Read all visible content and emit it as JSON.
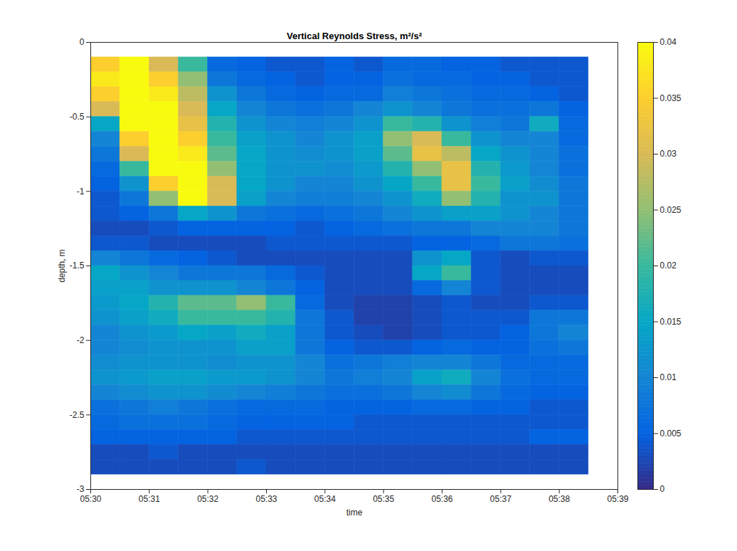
{
  "chart_data": {
    "type": "heatmap",
    "title": "Vertical Reynolds Stress, m²/s²",
    "xlabel": "time",
    "ylabel": "depth, m",
    "x": [
      30,
      30.5,
      31,
      31.5,
      32,
      32.5,
      33,
      33.5,
      34,
      34.5,
      35,
      35.5,
      36,
      36.5,
      37,
      37.5,
      38,
      38.5
    ],
    "y": [
      -0.1,
      -0.2,
      -0.3,
      -0.4,
      -0.5,
      -0.6,
      -0.7,
      -0.8,
      -0.9,
      -1.0,
      -1.1,
      -1.2,
      -1.3,
      -1.4,
      -1.5,
      -1.6,
      -1.7,
      -1.8,
      -1.9,
      -2.0,
      -2.1,
      -2.2,
      -2.3,
      -2.4,
      -2.5,
      -2.6,
      -2.7,
      -2.8,
      -2.9
    ],
    "values": [
      [
        0.035,
        0.04,
        0.03,
        0.02,
        0.006,
        0.005,
        0.004,
        0.004,
        0.005,
        0.004,
        0.006,
        0.006,
        0.005,
        0.005,
        0.004,
        0.004,
        0.004
      ],
      [
        0.038,
        0.04,
        0.035,
        0.025,
        0.008,
        0.006,
        0.005,
        0.004,
        0.005,
        0.005,
        0.007,
        0.006,
        0.006,
        0.005,
        0.005,
        0.004,
        0.004
      ],
      [
        0.035,
        0.04,
        0.038,
        0.028,
        0.012,
        0.008,
        0.006,
        0.005,
        0.006,
        0.006,
        0.009,
        0.008,
        0.007,
        0.006,
        0.006,
        0.005,
        0.004
      ],
      [
        0.03,
        0.04,
        0.04,
        0.03,
        0.015,
        0.01,
        0.008,
        0.007,
        0.008,
        0.01,
        0.012,
        0.01,
        0.008,
        0.007,
        0.007,
        0.008,
        0.005
      ],
      [
        0.015,
        0.04,
        0.04,
        0.032,
        0.018,
        0.012,
        0.01,
        0.009,
        0.01,
        0.012,
        0.02,
        0.018,
        0.012,
        0.009,
        0.008,
        0.016,
        0.006
      ],
      [
        0.01,
        0.035,
        0.04,
        0.035,
        0.02,
        0.014,
        0.012,
        0.01,
        0.012,
        0.014,
        0.025,
        0.03,
        0.02,
        0.012,
        0.01,
        0.01,
        0.006
      ],
      [
        0.008,
        0.03,
        0.04,
        0.038,
        0.022,
        0.015,
        0.012,
        0.011,
        0.012,
        0.014,
        0.022,
        0.032,
        0.028,
        0.015,
        0.012,
        0.01,
        0.007
      ],
      [
        0.006,
        0.02,
        0.04,
        0.04,
        0.025,
        0.015,
        0.012,
        0.012,
        0.011,
        0.013,
        0.018,
        0.025,
        0.032,
        0.018,
        0.013,
        0.01,
        0.007
      ],
      [
        0.005,
        0.012,
        0.035,
        0.04,
        0.03,
        0.015,
        0.012,
        0.01,
        0.01,
        0.012,
        0.015,
        0.02,
        0.032,
        0.02,
        0.014,
        0.011,
        0.008
      ],
      [
        0.004,
        0.008,
        0.025,
        0.04,
        0.03,
        0.014,
        0.01,
        0.009,
        0.009,
        0.01,
        0.012,
        0.016,
        0.025,
        0.018,
        0.012,
        0.012,
        0.008
      ],
      [
        0.004,
        0.005,
        0.008,
        0.015,
        0.012,
        0.008,
        0.007,
        0.006,
        0.007,
        0.008,
        0.01,
        0.012,
        0.014,
        0.014,
        0.012,
        0.01,
        0.008
      ],
      [
        0.003,
        0.003,
        0.004,
        0.005,
        0.005,
        0.005,
        0.005,
        0.004,
        0.005,
        0.006,
        0.007,
        0.008,
        0.008,
        0.01,
        0.01,
        0.01,
        0.008
      ],
      [
        0.004,
        0.004,
        0.003,
        0.003,
        0.003,
        0.003,
        0.004,
        0.004,
        0.004,
        0.004,
        0.004,
        0.005,
        0.005,
        0.006,
        0.008,
        0.008,
        0.007
      ],
      [
        0.01,
        0.008,
        0.006,
        0.005,
        0.004,
        0.003,
        0.003,
        0.003,
        0.003,
        0.003,
        0.003,
        0.012,
        0.015,
        0.004,
        0.003,
        0.004,
        0.004
      ],
      [
        0.015,
        0.012,
        0.01,
        0.008,
        0.008,
        0.008,
        0.006,
        0.004,
        0.003,
        0.003,
        0.003,
        0.015,
        0.02,
        0.004,
        0.003,
        0.003,
        0.003
      ],
      [
        0.014,
        0.014,
        0.012,
        0.012,
        0.012,
        0.01,
        0.008,
        0.005,
        0.003,
        0.003,
        0.003,
        0.006,
        0.01,
        0.004,
        0.003,
        0.003,
        0.003
      ],
      [
        0.013,
        0.015,
        0.018,
        0.022,
        0.022,
        0.025,
        0.02,
        0.006,
        0.003,
        0.002,
        0.002,
        0.003,
        0.004,
        0.003,
        0.003,
        0.004,
        0.004
      ],
      [
        0.012,
        0.014,
        0.016,
        0.02,
        0.02,
        0.02,
        0.018,
        0.008,
        0.004,
        0.002,
        0.002,
        0.003,
        0.004,
        0.004,
        0.004,
        0.008,
        0.008
      ],
      [
        0.01,
        0.012,
        0.013,
        0.015,
        0.014,
        0.016,
        0.014,
        0.008,
        0.004,
        0.003,
        0.002,
        0.003,
        0.004,
        0.004,
        0.005,
        0.008,
        0.01
      ],
      [
        0.01,
        0.011,
        0.012,
        0.012,
        0.012,
        0.014,
        0.014,
        0.008,
        0.005,
        0.004,
        0.004,
        0.005,
        0.006,
        0.005,
        0.005,
        0.007,
        0.008
      ],
      [
        0.011,
        0.012,
        0.012,
        0.012,
        0.011,
        0.012,
        0.012,
        0.01,
        0.007,
        0.008,
        0.009,
        0.01,
        0.01,
        0.008,
        0.006,
        0.006,
        0.006
      ],
      [
        0.012,
        0.013,
        0.014,
        0.014,
        0.013,
        0.013,
        0.012,
        0.01,
        0.008,
        0.009,
        0.01,
        0.014,
        0.016,
        0.01,
        0.007,
        0.006,
        0.006
      ],
      [
        0.01,
        0.011,
        0.012,
        0.012,
        0.011,
        0.01,
        0.009,
        0.008,
        0.007,
        0.007,
        0.008,
        0.01,
        0.011,
        0.008,
        0.006,
        0.005,
        0.005
      ],
      [
        0.007,
        0.008,
        0.009,
        0.008,
        0.007,
        0.006,
        0.006,
        0.006,
        0.005,
        0.005,
        0.005,
        0.006,
        0.006,
        0.005,
        0.005,
        0.004,
        0.004
      ],
      [
        0.006,
        0.007,
        0.007,
        0.007,
        0.006,
        0.005,
        0.005,
        0.005,
        0.005,
        0.004,
        0.004,
        0.004,
        0.004,
        0.004,
        0.004,
        0.004,
        0.004
      ],
      [
        0.005,
        0.005,
        0.005,
        0.005,
        0.005,
        0.004,
        0.004,
        0.004,
        0.004,
        0.004,
        0.004,
        0.004,
        0.004,
        0.004,
        0.004,
        0.005,
        0.005
      ],
      [
        0.003,
        0.003,
        0.004,
        0.003,
        0.003,
        0.003,
        0.003,
        0.003,
        0.003,
        0.003,
        0.003,
        0.003,
        0.003,
        0.003,
        0.003,
        0.003,
        0.003
      ],
      [
        0.003,
        0.003,
        0.003,
        0.003,
        0.003,
        0.004,
        0.003,
        0.003,
        0.003,
        0.003,
        0.003,
        0.003,
        0.003,
        0.003,
        0.003,
        0.003,
        0.003
      ]
    ],
    "xlim": [
      30,
      39
    ],
    "ylim": [
      -3,
      0
    ],
    "xticks": [
      {
        "value": 30,
        "label": "05:30"
      },
      {
        "value": 31,
        "label": "05:31"
      },
      {
        "value": 32,
        "label": "05:32"
      },
      {
        "value": 33,
        "label": "05:33"
      },
      {
        "value": 34,
        "label": "05:34"
      },
      {
        "value": 35,
        "label": "05:35"
      },
      {
        "value": 36,
        "label": "05:36"
      },
      {
        "value": 37,
        "label": "05:37"
      },
      {
        "value": 38,
        "label": "05:38"
      },
      {
        "value": 39,
        "label": "05:39"
      }
    ],
    "yticks": [
      -3,
      -2.5,
      -2,
      -1.5,
      -1,
      -0.5,
      0
    ],
    "colorbar": {
      "range": [
        0,
        0.04
      ],
      "ticks": [
        0,
        0.005,
        0.01,
        0.015,
        0.02,
        0.025,
        0.03,
        0.035,
        0.04
      ]
    }
  }
}
